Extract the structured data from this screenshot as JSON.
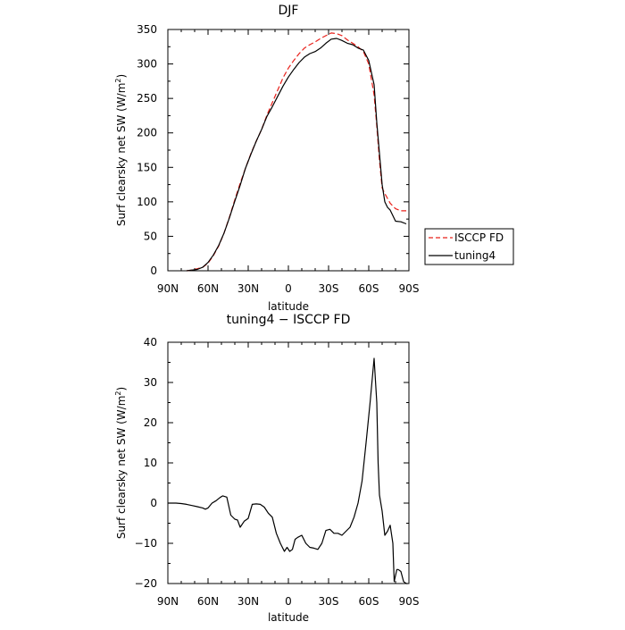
{
  "chart_data": [
    {
      "type": "line",
      "title": "DJF",
      "xlabel": "latitude",
      "ylabel_main": "Surf clearsky net SW (W/m",
      "ylabel_sup": "2",
      "ylabel_close": ")",
      "xlim": [
        90,
        -90
      ],
      "ylim": [
        0,
        350
      ],
      "x_ticks": [
        90,
        60,
        30,
        0,
        -30,
        -60,
        -90
      ],
      "x_tick_labels": [
        "90N",
        "60N",
        "30N",
        "0",
        "30S",
        "60S",
        "90S"
      ],
      "y_ticks": [
        0,
        50,
        100,
        150,
        200,
        250,
        300,
        350
      ],
      "y_tick_labels": [
        "0",
        "50",
        "100",
        "150",
        "200",
        "250",
        "300",
        "350"
      ],
      "legend_position": "outside-right",
      "series": [
        {
          "name": "ISCCP FD",
          "color": "#e8201a",
          "dash": "dashed",
          "x": [
            76,
            72,
            68,
            64,
            60,
            56,
            52,
            48,
            44,
            40,
            36,
            32,
            28,
            24,
            20,
            16,
            12,
            8,
            4,
            0,
            -4,
            -8,
            -12,
            -16,
            -20,
            -24,
            -28,
            -32,
            -36,
            -40,
            -44,
            -48,
            -52,
            -56,
            -60,
            -64,
            -66,
            -68,
            -70,
            -72,
            -74,
            -76,
            -80,
            -84,
            -88
          ],
          "values": [
            0,
            1,
            3,
            5,
            11,
            22,
            36,
            55,
            78,
            103,
            127,
            149,
            170,
            188,
            205,
            226,
            244,
            262,
            280,
            294,
            305,
            315,
            323,
            328,
            332,
            337,
            341,
            345,
            344,
            341,
            335,
            330,
            325,
            318,
            300,
            255,
            210,
            160,
            120,
            112,
            105,
            98,
            90,
            87,
            87
          ]
        },
        {
          "name": "tuning4",
          "color": "#000000",
          "dash": "solid",
          "x": [
            76,
            72,
            68,
            64,
            60,
            56,
            52,
            48,
            44,
            40,
            36,
            32,
            28,
            24,
            20,
            16,
            12,
            8,
            4,
            0,
            -4,
            -8,
            -12,
            -16,
            -20,
            -24,
            -28,
            -32,
            -36,
            -40,
            -44,
            -48,
            -52,
            -56,
            -60,
            -64,
            -66,
            -68,
            -70,
            -72,
            -74,
            -76,
            -80,
            -84,
            -88
          ],
          "values": [
            0,
            1,
            2,
            5,
            12,
            23,
            37,
            55,
            77,
            101,
            124,
            149,
            169,
            188,
            205,
            224,
            238,
            253,
            268,
            281,
            292,
            302,
            310,
            315,
            318,
            323,
            330,
            336,
            337,
            334,
            330,
            328,
            323,
            320,
            305,
            270,
            215,
            170,
            125,
            100,
            92,
            88,
            72,
            71,
            68
          ]
        }
      ]
    },
    {
      "type": "line",
      "title": "tuning4 − ISCCP FD",
      "xlabel": "latitude",
      "ylabel_main": "Surf clearsky net SW (W/m",
      "ylabel_sup": "2",
      "ylabel_close": ")",
      "xlim": [
        90,
        -90
      ],
      "ylim": [
        -20,
        40
      ],
      "x_ticks": [
        90,
        60,
        30,
        0,
        -30,
        -60,
        -90
      ],
      "x_tick_labels": [
        "90N",
        "60N",
        "30N",
        "0",
        "30S",
        "60S",
        "90S"
      ],
      "y_ticks": [
        -20,
        -10,
        0,
        10,
        20,
        30,
        40
      ],
      "y_tick_labels": [
        "−20",
        "−10",
        "0",
        "10",
        "20",
        "30",
        "40"
      ],
      "series": [
        {
          "name": "",
          "color": "#000000",
          "dash": "solid",
          "x": [
            90,
            84,
            80,
            76,
            72,
            68,
            64,
            62,
            60,
            57,
            54,
            51,
            49,
            46,
            43,
            40,
            38,
            36,
            33,
            30,
            27,
            24,
            21,
            18,
            15,
            12,
            9,
            6,
            3,
            1,
            -1,
            -3,
            -5,
            -7,
            -10,
            -13,
            -16,
            -19,
            -22,
            -25,
            -28,
            -31,
            -34,
            -37,
            -40,
            -43,
            -46,
            -49,
            -52,
            -55,
            -58,
            -61,
            -64,
            -66,
            -67,
            -68,
            -70,
            -72,
            -74,
            -76,
            -78,
            -79,
            -80,
            -81,
            -82,
            -84,
            -86,
            -88,
            -89
          ],
          "values": [
            0,
            0,
            -0.1,
            -0.3,
            -0.6,
            -0.9,
            -1.2,
            -1.5,
            -1.2,
            0,
            0.6,
            1.4,
            1.8,
            1.5,
            -3,
            -4,
            -4.2,
            -6,
            -4.5,
            -3.8,
            -0.3,
            -0.2,
            -0.3,
            -1,
            -2.5,
            -3.5,
            -7.5,
            -10,
            -12,
            -11,
            -12,
            -11.5,
            -9,
            -8.5,
            -8,
            -10,
            -11,
            -11.2,
            -11.5,
            -10,
            -6.8,
            -6.5,
            -7.5,
            -7.5,
            -8,
            -7,
            -6,
            -3.5,
            0,
            5.5,
            15,
            25,
            36,
            25,
            10,
            2,
            -2,
            -8,
            -7,
            -5.5,
            -10,
            -19.5,
            -18,
            -16.5,
            -16.5,
            -17,
            -19.5,
            -20,
            -20
          ]
        }
      ]
    }
  ]
}
